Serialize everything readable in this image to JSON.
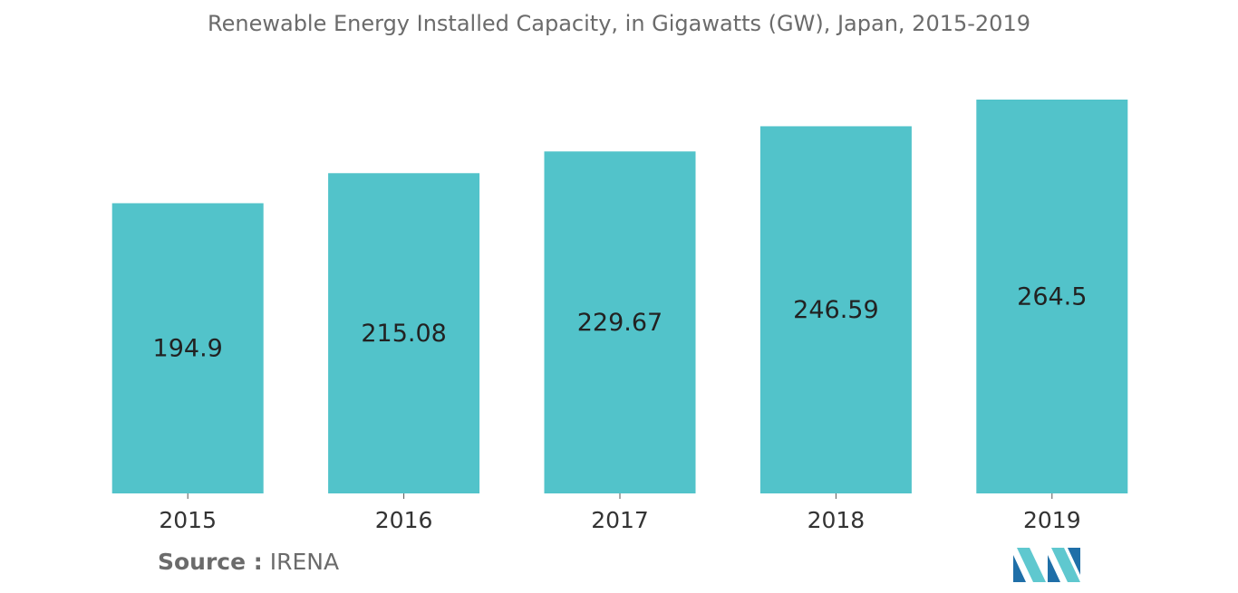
{
  "chart_data": {
    "type": "bar",
    "title": "Renewable Energy Installed Capacity, in Gigawatts (GW), Japan, 2015-2019",
    "xlabel": "",
    "ylabel": "",
    "categories": [
      "2015",
      "2016",
      "2017",
      "2018",
      "2019"
    ],
    "values": [
      194.9,
      215.08,
      229.67,
      246.59,
      264.5
    ],
    "data_labels": [
      "194.9",
      "215.08",
      "229.67",
      "246.59",
      "264.5"
    ],
    "ylim": [
      0,
      264.5
    ],
    "grid": false,
    "legend": "none",
    "bar_color": "#52c3ca"
  },
  "source": {
    "label": "Source :",
    "value": "IRENA"
  },
  "logo": {
    "icon": "mordor-intelligence-logo-icon",
    "colors": [
      "#1f6fa8",
      "#5fc8cf"
    ]
  }
}
